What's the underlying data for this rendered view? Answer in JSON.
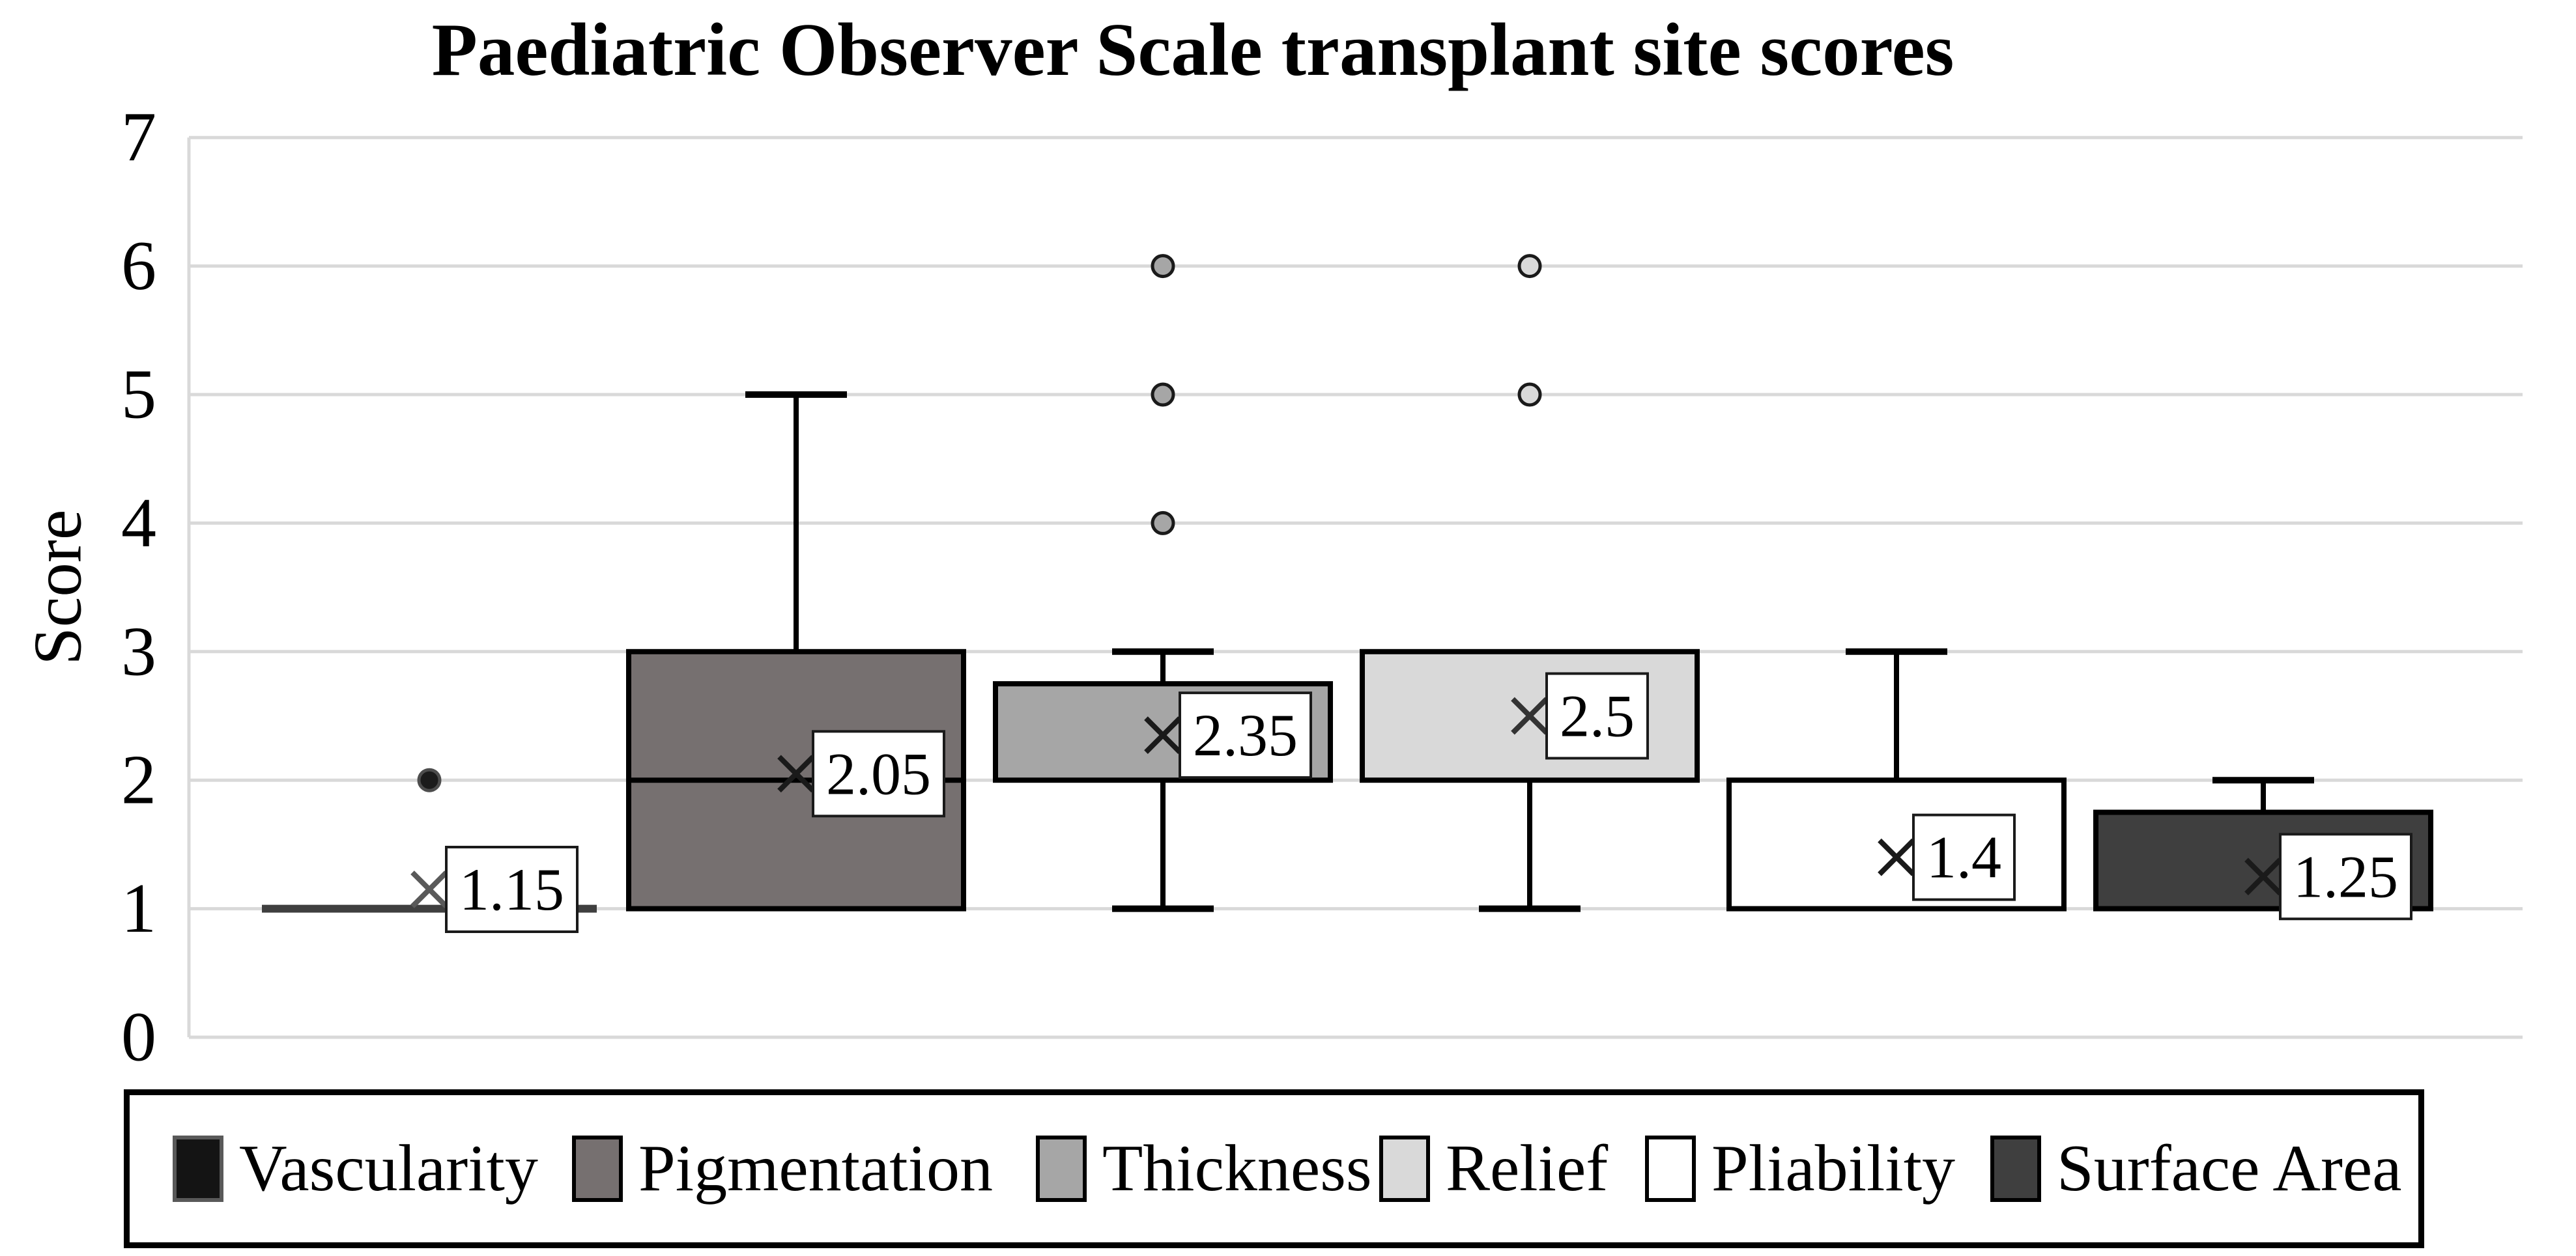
{
  "page": {
    "background": "#ffffff"
  },
  "chart_data": {
    "type": "boxplot",
    "title": "Paediatric Observer Scale transplant site scores",
    "xlabel": "",
    "ylabel": "Score",
    "ylim": [
      0,
      7
    ],
    "yticks": [
      0,
      1,
      2,
      3,
      4,
      5,
      6,
      7
    ],
    "grid": true,
    "grid_color": "#d9d9d9",
    "axis_line_color": "#d9d9d9",
    "box_border_color": "#000000",
    "mean_label_box_color": "#ffffff",
    "mean_label_border_color": "#1a1a1a",
    "legend_position": "bottom",
    "legend_border_color": "#000000",
    "series": [
      {
        "name": "Vascularity",
        "fill": "#141414",
        "swatch_border": "#595959",
        "collapsed_line_color": "#3f3f3f",
        "marker_color": "#595959",
        "outlier_fill": "#1b1b1b",
        "outlier_stroke": "#4d4d4d",
        "min": 1,
        "q1": 1,
        "median": 1,
        "q3": 1,
        "max": 1,
        "mean": 1.15,
        "mean_label": "1.15",
        "outliers": [
          2
        ]
      },
      {
        "name": "Pigmentation",
        "fill": "#767070",
        "swatch_border": "#000000",
        "marker_color": "#1a1a1a",
        "outlier_fill": "#767070",
        "outlier_stroke": "#1a1a1a",
        "min": 1,
        "q1": 1,
        "median": 2,
        "q3": 3,
        "max": 5,
        "mean": 2.05,
        "mean_label": "2.05",
        "outliers": []
      },
      {
        "name": "Thickness",
        "fill": "#a6a6a6",
        "swatch_border": "#000000",
        "marker_color": "#1a1a1a",
        "outlier_fill": "#a6a6a6",
        "outlier_stroke": "#1a1a1a",
        "min": 1,
        "q1": 2,
        "median": 2,
        "q3": 2.75,
        "max": 3,
        "mean": 2.35,
        "mean_label": "2.35",
        "outliers": [
          4,
          5,
          6
        ]
      },
      {
        "name": "Relief",
        "fill": "#d9d9d9",
        "swatch_border": "#000000",
        "marker_color": "#333333",
        "outlier_fill": "#d9d9d9",
        "outlier_stroke": "#1a1a1a",
        "min": 1,
        "q1": 2,
        "median": 2,
        "q3": 3,
        "max": 3,
        "mean": 2.5,
        "mean_label": "2.5",
        "outliers": [
          5,
          6
        ]
      },
      {
        "name": "Pliability",
        "fill": "#ffffff",
        "swatch_border": "#000000",
        "marker_color": "#1a1a1a",
        "outlier_fill": "#ffffff",
        "outlier_stroke": "#1a1a1a",
        "min": 1,
        "q1": 1,
        "median": 1,
        "q3": 2,
        "max": 3,
        "mean": 1.4,
        "mean_label": "1.4",
        "outliers": []
      },
      {
        "name": "Surface Area",
        "fill": "#3f3f3f",
        "swatch_border": "#000000",
        "marker_color": "#1a1a1a",
        "outlier_fill": "#3f3f3f",
        "outlier_stroke": "#1a1a1a",
        "min": 1,
        "q1": 1,
        "median": 1,
        "q3": 1.75,
        "max": 2,
        "mean": 1.25,
        "mean_label": "1.25",
        "outliers": []
      }
    ]
  }
}
